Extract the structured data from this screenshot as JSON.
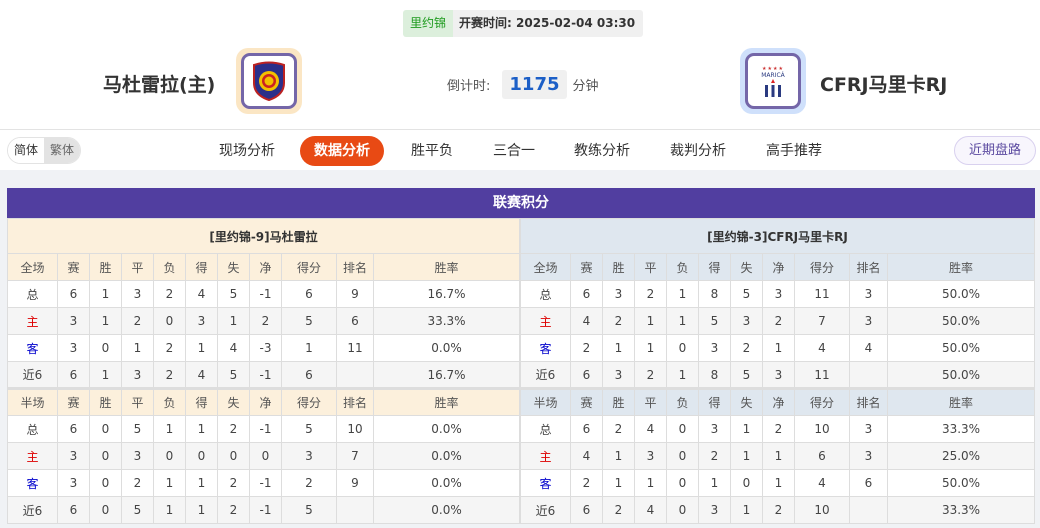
{
  "match": {
    "league": "里约锦",
    "kickoff": "开赛时间: 2025-02-04 03:30",
    "countdown_label": "倒计时:",
    "countdown_value": "1175",
    "countdown_unit": "分钟"
  },
  "home": {
    "name": "马杜雷拉(主)",
    "logo_color": "#fbe6c4"
  },
  "away": {
    "name": "CFRJ马里卡RJ",
    "logo_color": "#cfe0fb",
    "logo_text": "MARICÁ"
  },
  "lang": {
    "simplified": "简体",
    "traditional": "繁体"
  },
  "nav": [
    "现场分析",
    "数据分析",
    "胜平负",
    "三合一",
    "教练分析",
    "裁判分析",
    "高手推荐"
  ],
  "nav_active": "数据分析",
  "recent_button": "近期盘路",
  "section_title": "联赛积分",
  "accent": "#513ea0",
  "tables": [
    {
      "title": "[里约锦-9]马杜雷拉",
      "full_header": [
        "全场",
        "赛",
        "胜",
        "平",
        "负",
        "得",
        "失",
        "净",
        "得分",
        "排名",
        "胜率"
      ],
      "full_rows": [
        [
          "总",
          "6",
          "1",
          "3",
          "2",
          "4",
          "5",
          "-1",
          "6",
          "9",
          "16.7%"
        ],
        [
          "主",
          "3",
          "1",
          "2",
          "0",
          "3",
          "1",
          "2",
          "5",
          "6",
          "33.3%"
        ],
        [
          "客",
          "3",
          "0",
          "1",
          "2",
          "1",
          "4",
          "-3",
          "1",
          "11",
          "0.0%"
        ],
        [
          "近6",
          "6",
          "1",
          "3",
          "2",
          "4",
          "5",
          "-1",
          "6",
          "",
          "16.7%"
        ]
      ],
      "half_header": [
        "半场",
        "赛",
        "胜",
        "平",
        "负",
        "得",
        "失",
        "净",
        "得分",
        "排名",
        "胜率"
      ],
      "half_rows": [
        [
          "总",
          "6",
          "0",
          "5",
          "1",
          "1",
          "2",
          "-1",
          "5",
          "10",
          "0.0%"
        ],
        [
          "主",
          "3",
          "0",
          "3",
          "0",
          "0",
          "0",
          "0",
          "3",
          "7",
          "0.0%"
        ],
        [
          "客",
          "3",
          "0",
          "2",
          "1",
          "1",
          "2",
          "-1",
          "2",
          "9",
          "0.0%"
        ],
        [
          "近6",
          "6",
          "0",
          "5",
          "1",
          "1",
          "2",
          "-1",
          "5",
          "",
          "0.0%"
        ]
      ]
    },
    {
      "title": "[里约锦-3]CFRJ马里卡RJ",
      "full_header": [
        "全场",
        "赛",
        "胜",
        "平",
        "负",
        "得",
        "失",
        "净",
        "得分",
        "排名",
        "胜率"
      ],
      "full_rows": [
        [
          "总",
          "6",
          "3",
          "2",
          "1",
          "8",
          "5",
          "3",
          "11",
          "3",
          "50.0%"
        ],
        [
          "主",
          "4",
          "2",
          "1",
          "1",
          "5",
          "3",
          "2",
          "7",
          "3",
          "50.0%"
        ],
        [
          "客",
          "2",
          "1",
          "1",
          "0",
          "3",
          "2",
          "1",
          "4",
          "4",
          "50.0%"
        ],
        [
          "近6",
          "6",
          "3",
          "2",
          "1",
          "8",
          "5",
          "3",
          "11",
          "",
          "50.0%"
        ]
      ],
      "half_header": [
        "半场",
        "赛",
        "胜",
        "平",
        "负",
        "得",
        "失",
        "净",
        "得分",
        "排名",
        "胜率"
      ],
      "half_rows": [
        [
          "总",
          "6",
          "2",
          "4",
          "0",
          "3",
          "1",
          "2",
          "10",
          "3",
          "33.3%"
        ],
        [
          "主",
          "4",
          "1",
          "3",
          "0",
          "2",
          "1",
          "1",
          "6",
          "3",
          "25.0%"
        ],
        [
          "客",
          "2",
          "1",
          "1",
          "0",
          "1",
          "0",
          "1",
          "4",
          "6",
          "50.0%"
        ],
        [
          "近6",
          "6",
          "2",
          "4",
          "0",
          "3",
          "1",
          "2",
          "10",
          "",
          "33.3%"
        ]
      ]
    }
  ]
}
